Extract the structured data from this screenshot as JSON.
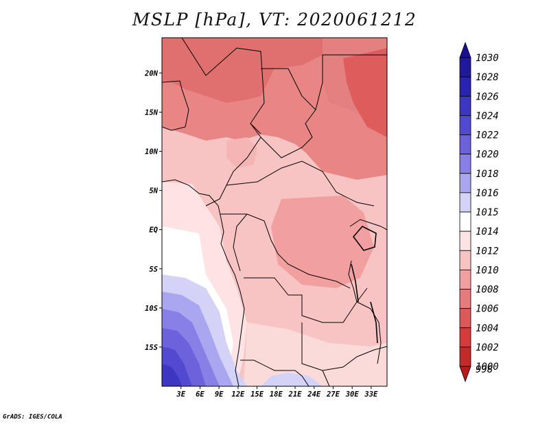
{
  "title": "MSLP [hPa], VT: 2020061212",
  "footer": "GrADS: IGES/COLA",
  "map": {
    "lon_range": [
      0,
      35.5
    ],
    "lat_range": [
      -20,
      24.5
    ],
    "lat_labels": [
      {
        "lat": 20,
        "text": "20N"
      },
      {
        "lat": 15,
        "text": "15N"
      },
      {
        "lat": 10,
        "text": "10N"
      },
      {
        "lat": 5,
        "text": "5N"
      },
      {
        "lat": 0,
        "text": "EQ"
      },
      {
        "lat": -5,
        "text": "5S"
      },
      {
        "lat": -10,
        "text": "10S"
      },
      {
        "lat": -15,
        "text": "15S"
      }
    ],
    "lon_labels": [
      {
        "lon": 3,
        "text": "3E"
      },
      {
        "lon": 6,
        "text": "6E"
      },
      {
        "lon": 9,
        "text": "9E"
      },
      {
        "lon": 12,
        "text": "12E"
      },
      {
        "lon": 15,
        "text": "15E"
      },
      {
        "lon": 18,
        "text": "18E"
      },
      {
        "lon": 21,
        "text": "21E"
      },
      {
        "lon": 24,
        "text": "24E"
      },
      {
        "lon": 27,
        "text": "27E"
      },
      {
        "lon": 30,
        "text": "30E"
      },
      {
        "lon": 33,
        "text": "33E"
      }
    ]
  },
  "colorbar": {
    "levels": [
      {
        "label": "1030",
        "color": "#1a0f8c"
      },
      {
        "label": "1028",
        "color": "#21189e"
      },
      {
        "label": "1026",
        "color": "#2a22b0"
      },
      {
        "label": "1024",
        "color": "#3d36c2"
      },
      {
        "label": "1022",
        "color": "#5349d0"
      },
      {
        "label": "1020",
        "color": "#6b62dc"
      },
      {
        "label": "1018",
        "color": "#8880e6"
      },
      {
        "label": "1016",
        "color": "#aaa6ef"
      },
      {
        "label": "1015",
        "color": "#d4d2f7"
      },
      {
        "label": "1014",
        "color": "#ffffff"
      },
      {
        "label": "1012",
        "color": "#fde3e3"
      },
      {
        "label": "1010",
        "color": "#f8c4c3"
      },
      {
        "label": "1008",
        "color": "#f19f9f"
      },
      {
        "label": "1006",
        "color": "#e77b7b"
      },
      {
        "label": "1004",
        "color": "#dd5959"
      },
      {
        "label": "1002",
        "color": "#d43c3c"
      },
      {
        "label": "1000",
        "color": "#c52a2a"
      },
      {
        "label": "998",
        "color": "#b51c1c"
      }
    ]
  }
}
